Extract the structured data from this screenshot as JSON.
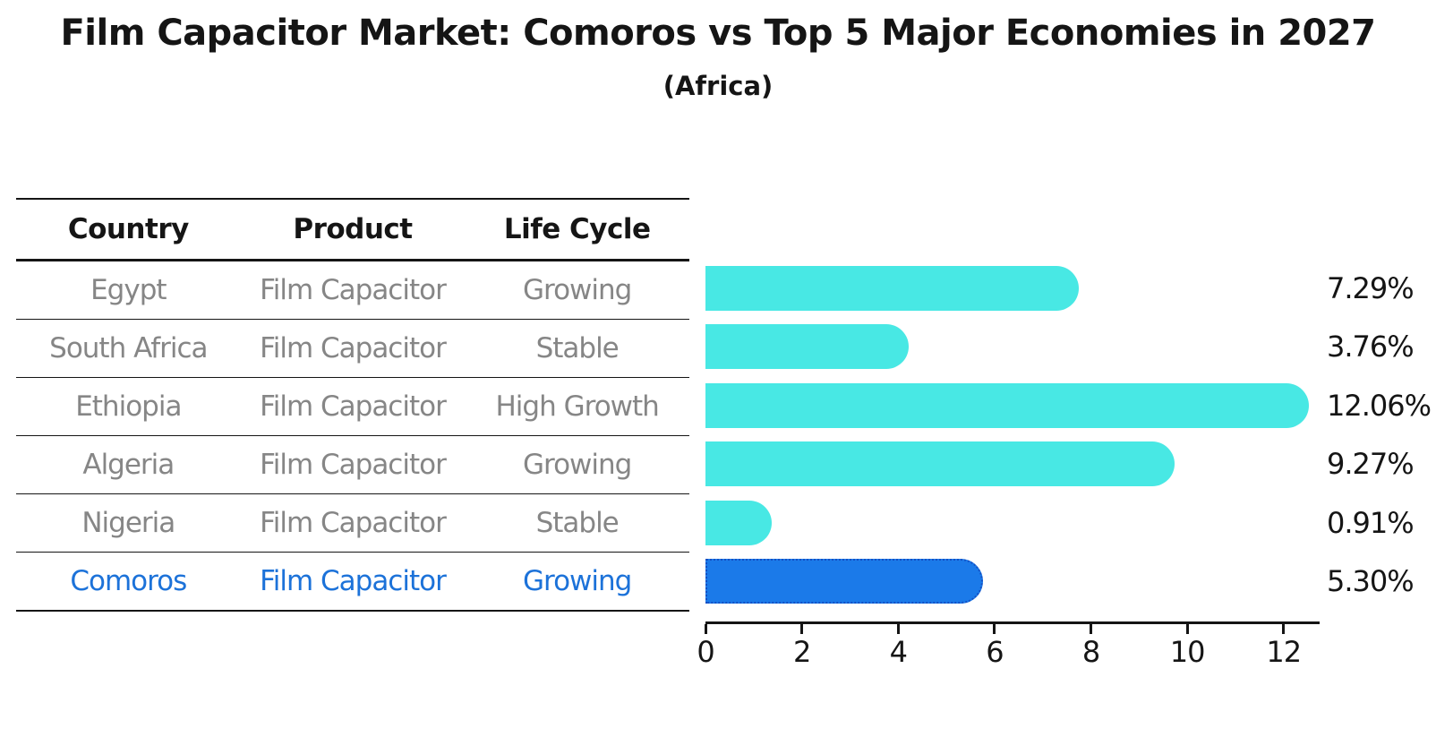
{
  "title": "Film Capacitor Market: Comoros vs Top 5 Major Economies in 2027",
  "subtitle": "(Africa)",
  "table": {
    "columns": [
      "Country",
      "Product",
      "Life Cycle"
    ],
    "rows": [
      {
        "country": "Egypt",
        "product": "Film Capacitor",
        "life_cycle": "Growing",
        "highlighted": false
      },
      {
        "country": "South Africa",
        "product": "Film Capacitor",
        "life_cycle": "Stable",
        "highlighted": false
      },
      {
        "country": "Ethiopia",
        "product": "Film Capacitor",
        "life_cycle": "High Growth",
        "highlighted": false
      },
      {
        "country": "Algeria",
        "product": "Film Capacitor",
        "life_cycle": "Growing",
        "highlighted": false
      },
      {
        "country": "Nigeria",
        "product": "Film Capacitor",
        "life_cycle": "Stable",
        "highlighted": false
      },
      {
        "country": "Comoros",
        "product": "Film Capacitor",
        "life_cycle": "Growing",
        "highlighted": true
      }
    ]
  },
  "chart_data": {
    "type": "bar",
    "orientation": "horizontal",
    "title": "Film Capacitor Market: Comoros vs Top 5 Major Economies in 2027",
    "subtitle": "(Africa)",
    "categories": [
      "Egypt",
      "South Africa",
      "Ethiopia",
      "Algeria",
      "Nigeria",
      "Comoros"
    ],
    "values": [
      7.29,
      3.76,
      12.06,
      9.27,
      0.91,
      5.3
    ],
    "value_labels": [
      "7.29%",
      "3.76%",
      "12.06%",
      "9.27%",
      "0.91%",
      "5.30%"
    ],
    "xlabel": "",
    "ylabel": "",
    "xlim": [
      0,
      12.71
    ],
    "xticks": [
      0,
      2,
      4,
      6,
      8,
      10,
      12
    ],
    "grid": false,
    "legend": false,
    "highlight_index": 5,
    "colors": {
      "bar_default": "#48E8E4",
      "bar_highlight": "#1B7AE9",
      "bar_highlight_border": "#1450C4",
      "table_text": "#868686",
      "highlight_text": "#1C72D9",
      "axis": "#151515"
    }
  }
}
